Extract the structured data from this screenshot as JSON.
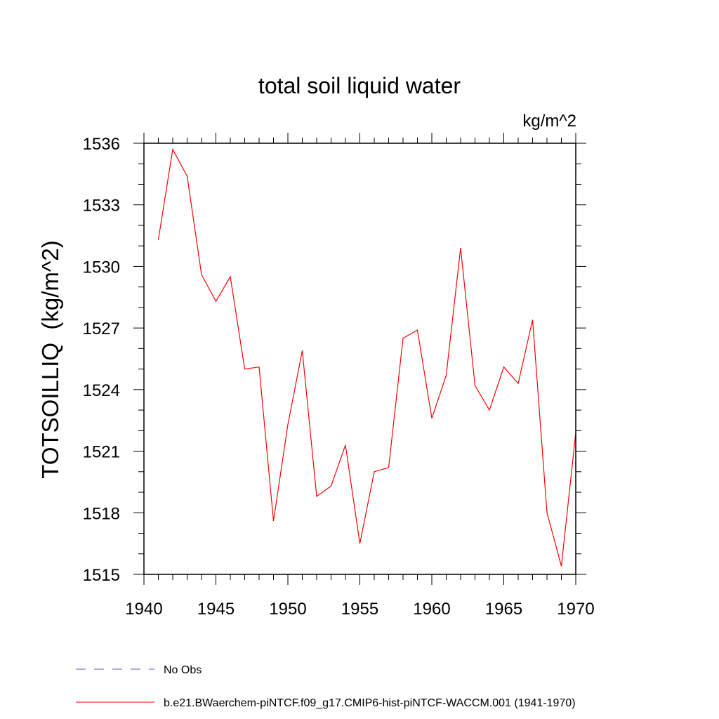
{
  "chart_data": {
    "type": "line",
    "title": "total soil liquid water",
    "units": "kg/m^2",
    "ylabel": "TOTSOILLIQ  (kg/m^2)",
    "xlabel": "",
    "xlim": [
      1940,
      1970
    ],
    "ylim": [
      1515,
      1536
    ],
    "xticks": [
      1940,
      1945,
      1950,
      1955,
      1960,
      1965,
      1970
    ],
    "yticks": [
      1515,
      1518,
      1521,
      1524,
      1527,
      1530,
      1533,
      1536
    ],
    "grid": false,
    "legend_position": "bottom-left",
    "series": [
      {
        "name": "b.e21.BWaerchem-piNTCF.f09_g17.CMIP6-hist-piNTCF-WACCM.001 (1941-1970)",
        "color": "#ff0000",
        "style": "solid",
        "x": [
          1941,
          1942,
          1943,
          1944,
          1945,
          1946,
          1947,
          1948,
          1949,
          1950,
          1951,
          1952,
          1953,
          1954,
          1955,
          1956,
          1957,
          1958,
          1959,
          1960,
          1961,
          1962,
          1963,
          1964,
          1965,
          1966,
          1967,
          1968,
          1969,
          1970
        ],
        "y": [
          1531.3,
          1535.7,
          1534.4,
          1529.6,
          1528.3,
          1529.5,
          1525.0,
          1525.1,
          1517.6,
          1522.3,
          1525.9,
          1518.8,
          1519.3,
          1521.3,
          1516.5,
          1520.0,
          1520.2,
          1526.5,
          1526.9,
          1522.6,
          1524.7,
          1530.9,
          1524.2,
          1523.0,
          1525.1,
          1524.3,
          1527.4,
          1518.0,
          1515.4,
          1521.9
        ]
      }
    ],
    "legend": [
      {
        "label": "No Obs",
        "color": "#6a5acd",
        "style": "dashed"
      },
      {
        "label": "b.e21.BWaerchem-piNTCF.f09_g17.CMIP6-hist-piNTCF-WACCM.001 (1941-1970)",
        "color": "#ff0000",
        "style": "solid"
      }
    ]
  }
}
